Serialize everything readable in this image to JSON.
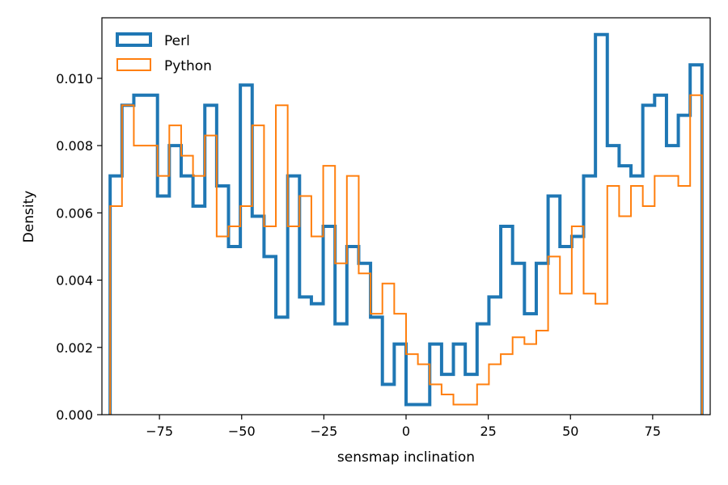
{
  "chart_data": {
    "type": "histogram-step",
    "xlabel": "sensmap inclination",
    "ylabel": "Density",
    "xlim": [
      -92.5,
      92.5
    ],
    "ylim": [
      0,
      0.0118
    ],
    "xticks": [
      -75,
      -50,
      -25,
      0,
      25,
      50,
      75
    ],
    "xtick_labels": [
      "−75",
      "−50",
      "−25",
      "0",
      "25",
      "50",
      "75"
    ],
    "yticks": [
      0,
      0.002,
      0.004,
      0.006,
      0.008,
      0.01
    ],
    "ytick_labels": [
      "0.000",
      "0.002",
      "0.004",
      "0.006",
      "0.008",
      "0.010"
    ],
    "legend_position": "upper-left",
    "bin_edges": [
      -90,
      -86.4,
      -82.8,
      -79.2,
      -75.6,
      -72,
      -68.4,
      -64.8,
      -61.2,
      -57.6,
      -54,
      -50.4,
      -46.8,
      -43.2,
      -39.6,
      -36,
      -32.4,
      -28.8,
      -25.2,
      -21.6,
      -18,
      -14.4,
      -10.8,
      -7.2,
      -3.6,
      0,
      3.6,
      7.2,
      10.8,
      14.4,
      18,
      21.6,
      25.2,
      28.8,
      32.4,
      36,
      39.6,
      43.2,
      46.8,
      50.4,
      54,
      57.6,
      61.2,
      64.8,
      68.4,
      72,
      75.6,
      79.2,
      82.8,
      86.4,
      90
    ],
    "series": [
      {
        "name": "Perl",
        "color": "#1f77b4",
        "line_width": 4,
        "values": [
          0.0071,
          0.0092,
          0.0095,
          0.0095,
          0.0065,
          0.008,
          0.0071,
          0.0062,
          0.0092,
          0.0068,
          0.005,
          0.0098,
          0.0059,
          0.0047,
          0.0029,
          0.0071,
          0.0035,
          0.0033,
          0.0056,
          0.0027,
          0.005,
          0.0045,
          0.0029,
          0.0009,
          0.0021,
          0.0003,
          0.0003,
          0.0021,
          0.0012,
          0.0021,
          0.0012,
          0.0027,
          0.0035,
          0.0056,
          0.0045,
          0.003,
          0.0045,
          0.0065,
          0.005,
          0.0053,
          0.0071,
          0.0113,
          0.008,
          0.0074,
          0.0071,
          0.0092,
          0.0095,
          0.008,
          0.0089,
          0.0104
        ]
      },
      {
        "name": "Python",
        "color": "#ff7f0e",
        "line_width": 2,
        "values": [
          0.0062,
          0.0092,
          0.008,
          0.008,
          0.0071,
          0.0086,
          0.0077,
          0.0071,
          0.0083,
          0.0053,
          0.0056,
          0.0062,
          0.0086,
          0.0056,
          0.0092,
          0.0056,
          0.0065,
          0.0053,
          0.0074,
          0.0045,
          0.0071,
          0.0042,
          0.003,
          0.0039,
          0.003,
          0.0018,
          0.0015,
          0.0009,
          0.0006,
          0.0003,
          0.0003,
          0.0009,
          0.0015,
          0.0018,
          0.0023,
          0.0021,
          0.0025,
          0.0047,
          0.0036,
          0.0056,
          0.0036,
          0.0033,
          0.0068,
          0.0059,
          0.0068,
          0.0062,
          0.0071,
          0.0071,
          0.0068,
          0.0095
        ]
      }
    ]
  }
}
